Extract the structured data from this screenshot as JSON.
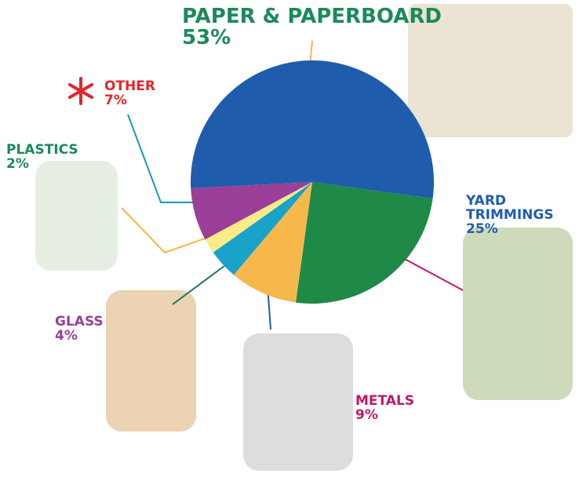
{
  "chart_data": {
    "type": "pie",
    "categories": [
      "PAPER & PAPERBOARD",
      "YARD TRIMMINGS",
      "METALS",
      "GLASS",
      "PLASTICS",
      "OTHER"
    ],
    "values": [
      53,
      25,
      9,
      4,
      2,
      7
    ],
    "value_labels": [
      "53%",
      "25%",
      "9%",
      "4%",
      "2%",
      "7%"
    ],
    "colors": [
      "#1f5dac",
      "#1f8a47",
      "#f6b84b",
      "#19a3c9",
      "#f9ec86",
      "#9b3f98"
    ]
  }
}
